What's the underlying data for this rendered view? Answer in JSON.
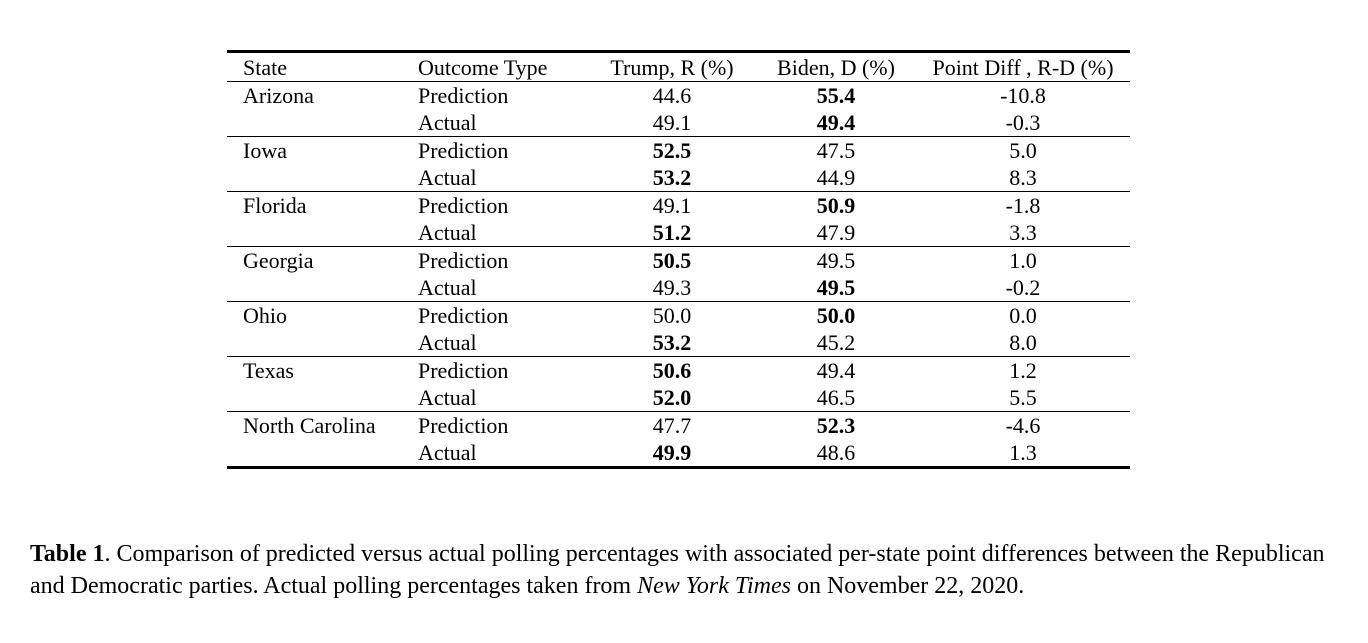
{
  "table": {
    "headers": {
      "state": "State",
      "outcome_type": "Outcome Type",
      "trump": "Trump, R (%)",
      "biden": "Biden, D (%)",
      "point_diff": "Point Diff , R-D (%)"
    },
    "groups": [
      {
        "state": "Arizona",
        "rows": [
          {
            "type": "Prediction",
            "trump": "44.6",
            "biden": "55.4",
            "diff": "-10.8",
            "winner": "biden"
          },
          {
            "type": "Actual",
            "trump": "49.1",
            "biden": "49.4",
            "diff": "-0.3",
            "winner": "biden"
          }
        ]
      },
      {
        "state": "Iowa",
        "rows": [
          {
            "type": "Prediction",
            "trump": "52.5",
            "biden": "47.5",
            "diff": "5.0",
            "winner": "trump"
          },
          {
            "type": "Actual",
            "trump": "53.2",
            "biden": "44.9",
            "diff": "8.3",
            "winner": "trump"
          }
        ]
      },
      {
        "state": "Florida",
        "rows": [
          {
            "type": "Prediction",
            "trump": "49.1",
            "biden": "50.9",
            "diff": "-1.8",
            "winner": "biden"
          },
          {
            "type": "Actual",
            "trump": "51.2",
            "biden": "47.9",
            "diff": "3.3",
            "winner": "trump"
          }
        ]
      },
      {
        "state": "Georgia",
        "rows": [
          {
            "type": "Prediction",
            "trump": "50.5",
            "biden": "49.5",
            "diff": "1.0",
            "winner": "trump"
          },
          {
            "type": "Actual",
            "trump": "49.3",
            "biden": "49.5",
            "diff": "-0.2",
            "winner": "biden"
          }
        ]
      },
      {
        "state": "Ohio",
        "rows": [
          {
            "type": "Prediction",
            "trump": "50.0",
            "biden": "50.0",
            "diff": "0.0",
            "winner": "biden"
          },
          {
            "type": "Actual",
            "trump": "53.2",
            "biden": "45.2",
            "diff": "8.0",
            "winner": "trump"
          }
        ]
      },
      {
        "state": "Texas",
        "rows": [
          {
            "type": "Prediction",
            "trump": "50.6",
            "biden": "49.4",
            "diff": "1.2",
            "winner": "trump"
          },
          {
            "type": "Actual",
            "trump": "52.0",
            "biden": "46.5",
            "diff": "5.5",
            "winner": "trump"
          }
        ]
      },
      {
        "state": "North Carolina",
        "rows": [
          {
            "type": "Prediction",
            "trump": "47.7",
            "biden": "52.3",
            "diff": "-4.6",
            "winner": "biden"
          },
          {
            "type": "Actual",
            "trump": "49.9",
            "biden": "48.6",
            "diff": "1.3",
            "winner": "trump"
          }
        ]
      }
    ]
  },
  "caption": {
    "label": "Table 1",
    "text_before": ". Comparison of predicted versus actual polling percentages with associated per-state point differences between the Republican and Democratic parties. Actual polling percentages taken from ",
    "source": "New York Times",
    "text_after": " on November 22, 2020."
  }
}
